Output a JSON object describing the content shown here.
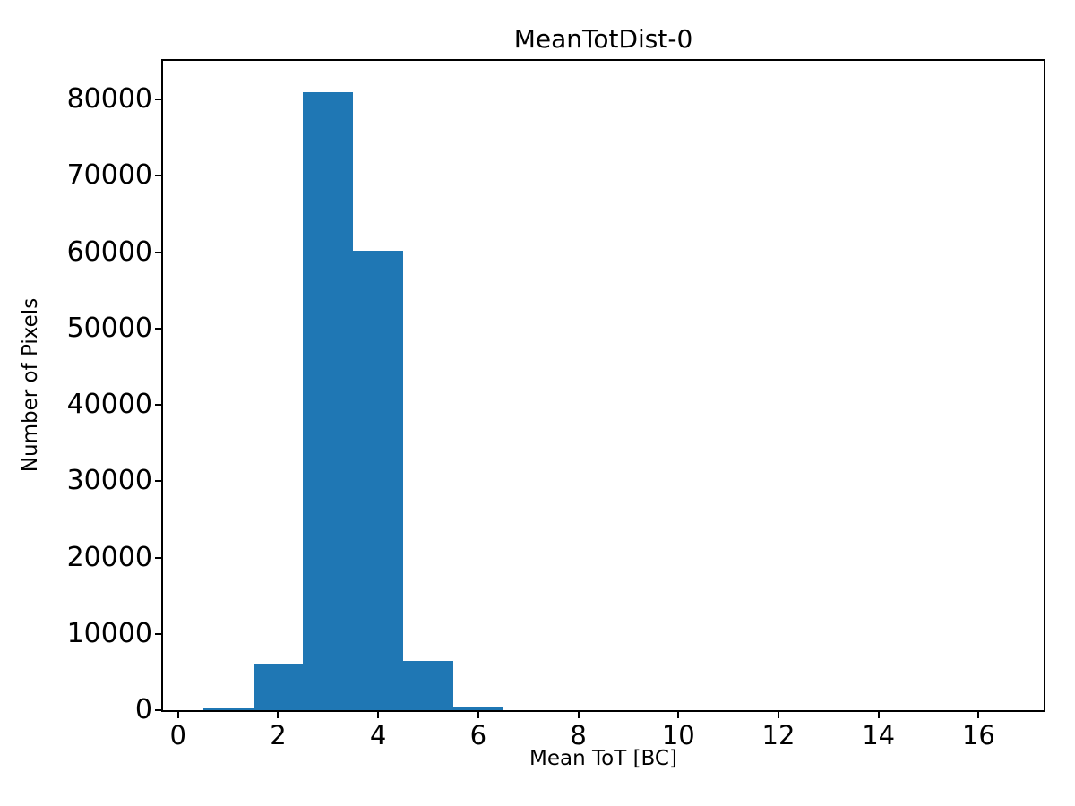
{
  "chart_data": {
    "type": "bar",
    "subtype": "histogram",
    "title": "MeanTotDist-0",
    "xlabel": "Mean ToT [BC]",
    "ylabel": "Number of Pixels",
    "bar_color": "#1f77b4",
    "axis_color": "#000000",
    "background_color": "#ffffff",
    "bin_width": 1,
    "bin_centers": [
      1,
      2,
      3,
      4,
      5,
      6,
      7,
      8,
      9,
      10,
      11,
      12,
      13,
      14,
      15,
      16
    ],
    "values": [
      250,
      6100,
      81000,
      60150,
      6500,
      500,
      0,
      0,
      0,
      0,
      0,
      0,
      0,
      0,
      0,
      0
    ],
    "xlim": [
      -0.3,
      17.3
    ],
    "ylim": [
      0,
      85050
    ],
    "xticks": [
      0,
      2,
      4,
      6,
      8,
      10,
      12,
      14,
      16
    ],
    "yticks": [
      0,
      10000,
      20000,
      30000,
      40000,
      50000,
      60000,
      70000,
      80000
    ],
    "grid": false,
    "legend": null
  }
}
